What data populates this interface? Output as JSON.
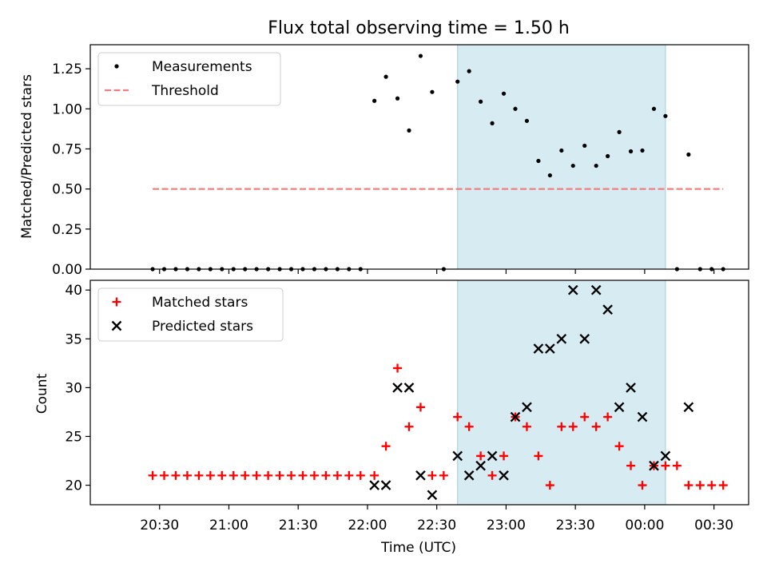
{
  "chart_data": [
    {
      "type": "scatter",
      "title": "Flux total observing time = 1.50 h",
      "xlabel": "",
      "ylabel": "Matched/Predicted stars",
      "ylim": [
        0,
        1.4
      ],
      "yticks": [
        "0.00",
        "0.25",
        "0.50",
        "0.75",
        "1.00",
        "1.25"
      ],
      "highlight_span": {
        "start": "22:39",
        "end": "00:09"
      },
      "legend_position": "upper-left",
      "series": [
        {
          "name": "Measurements",
          "marker": "dot",
          "color": "#000000",
          "points": [
            [
              "20:27",
              0
            ],
            [
              "20:32",
              0
            ],
            [
              "20:37",
              0
            ],
            [
              "20:42",
              0
            ],
            [
              "20:47",
              0
            ],
            [
              "20:52",
              0
            ],
            [
              "20:57",
              0
            ],
            [
              "21:02",
              0
            ],
            [
              "21:07",
              0
            ],
            [
              "21:12",
              0
            ],
            [
              "21:17",
              0
            ],
            [
              "21:22",
              0
            ],
            [
              "21:27",
              0
            ],
            [
              "21:32",
              0
            ],
            [
              "21:37",
              0
            ],
            [
              "21:42",
              0
            ],
            [
              "21:47",
              0
            ],
            [
              "21:52",
              0
            ],
            [
              "21:57",
              0
            ],
            [
              "22:03",
              1.05
            ],
            [
              "22:08",
              1.2
            ],
            [
              "22:13",
              1.065
            ],
            [
              "22:18",
              0.865
            ],
            [
              "22:23",
              1.33
            ],
            [
              "22:28",
              1.105
            ],
            [
              "22:33",
              0
            ],
            [
              "22:39",
              1.17
            ],
            [
              "22:44",
              1.235
            ],
            [
              "22:49",
              1.045
            ],
            [
              "22:54",
              0.91
            ],
            [
              "22:59",
              1.095
            ],
            [
              "23:04",
              1.0
            ],
            [
              "23:09",
              0.925
            ],
            [
              "23:14",
              0.675
            ],
            [
              "23:19",
              0.585
            ],
            [
              "23:24",
              0.74
            ],
            [
              "23:29",
              0.645
            ],
            [
              "23:34",
              0.77
            ],
            [
              "23:39",
              0.645
            ],
            [
              "23:44",
              0.705
            ],
            [
              "23:49",
              0.855
            ],
            [
              "23:54",
              0.735
            ],
            [
              "23:59",
              0.74
            ],
            [
              "00:04",
              1.0
            ],
            [
              "00:09",
              0.955
            ],
            [
              "00:14",
              0
            ],
            [
              "00:19",
              0.715
            ],
            [
              "00:24",
              0
            ],
            [
              "00:29",
              0
            ],
            [
              "00:34",
              0
            ]
          ]
        },
        {
          "name": "Threshold",
          "marker": "dashed-line",
          "color": "#f08080",
          "points": [
            [
              "20:27",
              0.5
            ],
            [
              "00:34",
              0.5
            ]
          ]
        }
      ]
    },
    {
      "type": "scatter",
      "title": "",
      "xlabel": "Time (UTC)",
      "ylabel": "Count",
      "ylim": [
        18,
        41
      ],
      "yticks": [
        "20",
        "25",
        "30",
        "35",
        "40"
      ],
      "xticks": [
        "20:30",
        "21:00",
        "21:30",
        "22:00",
        "22:30",
        "23:00",
        "23:30",
        "00:00",
        "00:30"
      ],
      "highlight_span": {
        "start": "22:39",
        "end": "00:09"
      },
      "legend_position": "upper-left",
      "series": [
        {
          "name": "Matched stars",
          "marker": "plus",
          "color": "#ff0000",
          "points": [
            [
              "20:27",
              21
            ],
            [
              "20:32",
              21
            ],
            [
              "20:37",
              21
            ],
            [
              "20:42",
              21
            ],
            [
              "20:47",
              21
            ],
            [
              "20:52",
              21
            ],
            [
              "20:57",
              21
            ],
            [
              "21:02",
              21
            ],
            [
              "21:07",
              21
            ],
            [
              "21:12",
              21
            ],
            [
              "21:17",
              21
            ],
            [
              "21:22",
              21
            ],
            [
              "21:27",
              21
            ],
            [
              "21:32",
              21
            ],
            [
              "21:37",
              21
            ],
            [
              "21:42",
              21
            ],
            [
              "21:47",
              21
            ],
            [
              "21:52",
              21
            ],
            [
              "21:57",
              21
            ],
            [
              "22:03",
              21
            ],
            [
              "22:08",
              24
            ],
            [
              "22:13",
              32
            ],
            [
              "22:18",
              26
            ],
            [
              "22:23",
              28
            ],
            [
              "22:28",
              21
            ],
            [
              "22:33",
              21
            ],
            [
              "22:39",
              27
            ],
            [
              "22:44",
              26
            ],
            [
              "22:49",
              23
            ],
            [
              "22:54",
              21
            ],
            [
              "22:59",
              23
            ],
            [
              "23:04",
              27
            ],
            [
              "23:09",
              26
            ],
            [
              "23:14",
              23
            ],
            [
              "23:19",
              20
            ],
            [
              "23:24",
              26
            ],
            [
              "23:29",
              26
            ],
            [
              "23:34",
              27
            ],
            [
              "23:39",
              26
            ],
            [
              "23:44",
              27
            ],
            [
              "23:49",
              24
            ],
            [
              "23:54",
              22
            ],
            [
              "23:59",
              20
            ],
            [
              "00:04",
              22
            ],
            [
              "00:09",
              22
            ],
            [
              "00:14",
              22
            ],
            [
              "00:19",
              20
            ],
            [
              "00:24",
              20
            ],
            [
              "00:29",
              20
            ],
            [
              "00:34",
              20
            ]
          ]
        },
        {
          "name": "Predicted stars",
          "marker": "x",
          "color": "#000000",
          "points": [
            [
              "22:03",
              20
            ],
            [
              "22:08",
              20
            ],
            [
              "22:13",
              30
            ],
            [
              "22:18",
              30
            ],
            [
              "22:23",
              21
            ],
            [
              "22:28",
              19
            ],
            [
              "22:39",
              23
            ],
            [
              "22:44",
              21
            ],
            [
              "22:49",
              22
            ],
            [
              "22:54",
              23
            ],
            [
              "22:59",
              21
            ],
            [
              "23:04",
              27
            ],
            [
              "23:09",
              28
            ],
            [
              "23:14",
              34
            ],
            [
              "23:19",
              34
            ],
            [
              "23:24",
              35
            ],
            [
              "23:29",
              40
            ],
            [
              "23:34",
              35
            ],
            [
              "23:39",
              40
            ],
            [
              "23:44",
              38
            ],
            [
              "23:49",
              28
            ],
            [
              "23:54",
              30
            ],
            [
              "23:59",
              27
            ],
            [
              "00:04",
              22
            ],
            [
              "00:09",
              23
            ],
            [
              "00:19",
              28
            ]
          ]
        }
      ]
    }
  ]
}
